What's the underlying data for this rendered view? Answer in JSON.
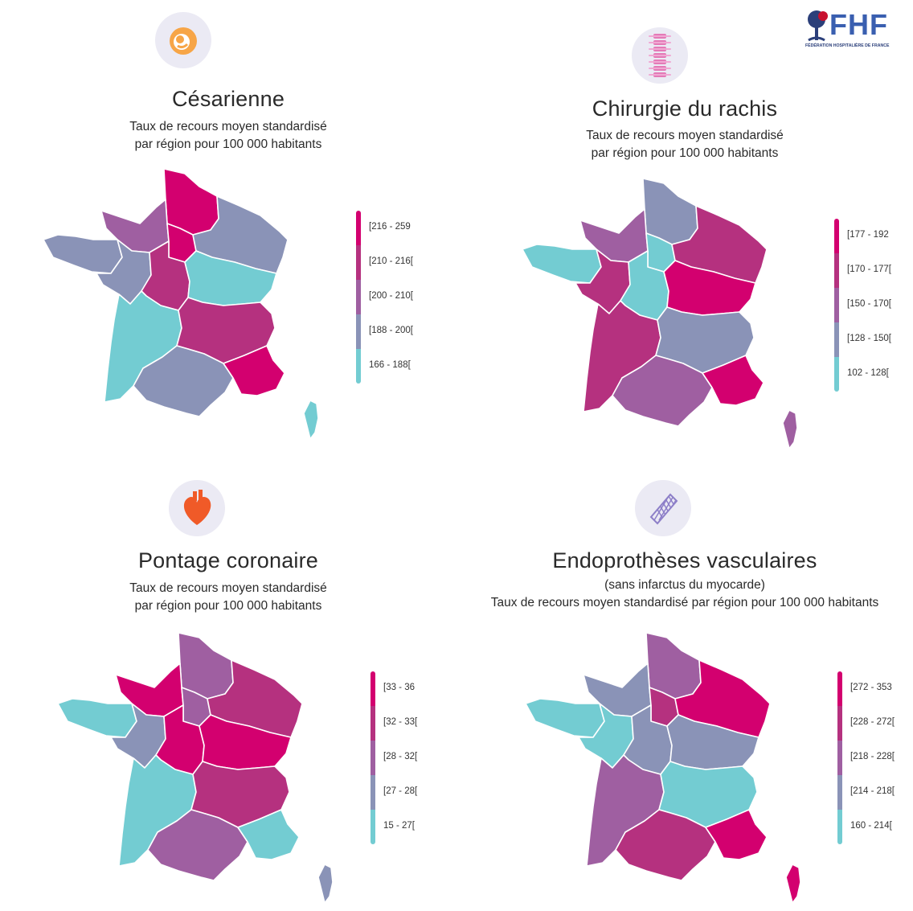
{
  "logo": {
    "name": "FHF",
    "subtitle": "FÉDÉRATION HOSPITALIÈRE DE FRANCE"
  },
  "colors": {
    "c1": "#d3006f",
    "c2": "#b5317f",
    "c3": "#9f5fa1",
    "c4": "#8a93b7",
    "c5": "#73ccd2"
  },
  "panels": [
    {
      "id": "cesarienne",
      "icon": "baby-icon",
      "title": "Césarienne",
      "subtitle_lines": [
        "Taux de recours moyen standardisé",
        "par région pour 100 000 habitants"
      ],
      "legend": [
        "[216 - 259",
        "[210 - 216[",
        "[200 - 210[",
        "[188 - 200[",
        "166 - 188["
      ],
      "regions": {
        "hauts-de-france": 1,
        "normandie": 3,
        "ile-de-france": 1,
        "grand-est": 4,
        "bretagne": 4,
        "pays-de-la-loire": 4,
        "centre-val-de-loire": 2,
        "bourgogne-franche-comte": 5,
        "nouvelle-aquitaine": 5,
        "auvergne-rhone-alpes": 2,
        "occitanie": 4,
        "paca": 1,
        "corse": 5
      }
    },
    {
      "id": "rachis",
      "icon": "spine-icon",
      "title": "Chirurgie du rachis",
      "subtitle_lines": [
        "Taux de recours moyen standardisé",
        "par région pour 100 000 habitants"
      ],
      "legend": [
        "[177 - 192",
        "[170 - 177[",
        "[150 - 170[",
        "[128 - 150[",
        "102 - 128["
      ],
      "regions": {
        "hauts-de-france": 4,
        "normandie": 3,
        "ile-de-france": 5,
        "grand-est": 2,
        "bretagne": 5,
        "pays-de-la-loire": 2,
        "centre-val-de-loire": 5,
        "bourgogne-franche-comte": 1,
        "nouvelle-aquitaine": 2,
        "auvergne-rhone-alpes": 4,
        "occitanie": 3,
        "paca": 1,
        "corse": 3
      }
    },
    {
      "id": "pontage",
      "icon": "heart-icon",
      "title": "Pontage coronaire",
      "subtitle_lines": [
        "Taux de recours moyen standardisé",
        "par région pour 100 000 habitants"
      ],
      "legend": [
        "[33 - 36",
        "[32 - 33[",
        "[28 - 32[",
        "[27 - 28[",
        "15 - 27["
      ],
      "regions": {
        "hauts-de-france": 3,
        "normandie": 1,
        "ile-de-france": 3,
        "grand-est": 2,
        "bretagne": 5,
        "pays-de-la-loire": 4,
        "centre-val-de-loire": 1,
        "bourgogne-franche-comte": 1,
        "nouvelle-aquitaine": 5,
        "auvergne-rhone-alpes": 2,
        "occitanie": 3,
        "paca": 5,
        "corse": 4
      }
    },
    {
      "id": "endoprotheses",
      "icon": "stent-icon",
      "title": "Endoprothèses vasculaires",
      "subtitle_lines": [
        "(sans infarctus du myocarde)",
        "Taux de recours moyen standardisé par région pour 100 000 habitants"
      ],
      "legend": [
        "[272 - 353",
        "[228 - 272[",
        "[218 - 228[",
        "[214 - 218[",
        "160 - 214["
      ],
      "regions": {
        "hauts-de-france": 3,
        "normandie": 4,
        "ile-de-france": 2,
        "grand-est": 1,
        "bretagne": 5,
        "pays-de-la-loire": 5,
        "centre-val-de-loire": 4,
        "bourgogne-franche-comte": 4,
        "nouvelle-aquitaine": 3,
        "auvergne-rhone-alpes": 5,
        "occitanie": 2,
        "paca": 1,
        "corse": 1
      }
    }
  ]
}
